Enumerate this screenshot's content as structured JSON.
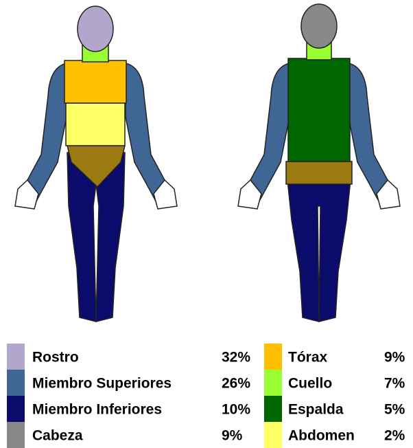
{
  "legend": {
    "items": [
      {
        "label": "Rostro",
        "value": "32%",
        "color": "#b3a6cc"
      },
      {
        "label": "Miembro Superiores",
        "value": "26%",
        "color": "#3f6694"
      },
      {
        "label": "Miembro Inferiores",
        "value": "10%",
        "color": "#0b0b6b"
      },
      {
        "label": "Cabeza",
        "value": "9%",
        "color": "#888888"
      },
      {
        "label": "Tórax",
        "value": "9%",
        "color": "#ffc000"
      },
      {
        "label": "Cuello",
        "value": "7%",
        "color": "#99ff33"
      },
      {
        "label": "Espalda",
        "value": "5%",
        "color": "#006600"
      },
      {
        "label": "Abdomen",
        "value": "2%",
        "color": "#ffff66"
      }
    ]
  }
}
